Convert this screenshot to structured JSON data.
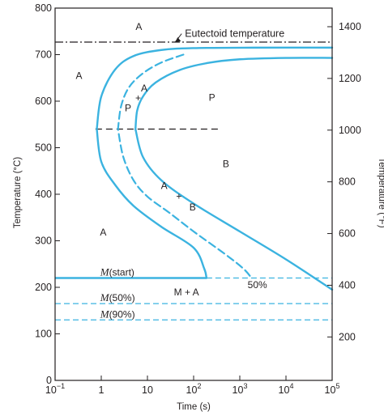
{
  "chart_data": {
    "type": "line",
    "colors": {
      "curve": "#3bb3e0",
      "axis": "#231f20",
      "dash_black": "#231f20"
    },
    "x_axis": {
      "label": "Time (s)",
      "scale": "log",
      "range": [
        0.1,
        100000
      ],
      "ticks": [
        {
          "value": 0.1,
          "base": "10",
          "exp": "−1"
        },
        {
          "value": 1,
          "base": "1",
          "exp": ""
        },
        {
          "value": 10,
          "base": "10",
          "exp": ""
        },
        {
          "value": 100,
          "base": "10",
          "exp": "2"
        },
        {
          "value": 1000,
          "base": "10",
          "exp": "3"
        },
        {
          "value": 10000,
          "base": "10",
          "exp": "4"
        },
        {
          "value": 100000,
          "base": "10",
          "exp": "5"
        }
      ]
    },
    "y_axis_left": {
      "label": "Temperature (°C)",
      "range": [
        0,
        800
      ],
      "ticks": [
        0,
        100,
        200,
        300,
        400,
        500,
        600,
        700,
        800
      ]
    },
    "y_axis_right": {
      "label": "Temperature (°F)",
      "ticks": [
        200,
        400,
        600,
        800,
        1000,
        1200,
        1400
      ]
    },
    "eutectoid": {
      "temperature": 727,
      "label": "Eutectoid temperature",
      "arrow_tip": [
        40,
        727
      ],
      "label_at": [
        55,
        745
      ]
    },
    "nose_dash": {
      "temperature": 540,
      "from": 0.75,
      "to": 400
    },
    "series": [
      {
        "role": "transformation start",
        "style": "solid",
        "points": [
          [
            0.8,
            540
          ],
          [
            1,
            610
          ],
          [
            2,
            668
          ],
          [
            5,
            697
          ],
          [
            20,
            710
          ],
          [
            100,
            714
          ],
          [
            2000,
            715
          ],
          [
            100000,
            715
          ],
          [
            0.8,
            540
          ],
          [
            1,
            470
          ],
          [
            2,
            420
          ],
          [
            5,
            375
          ],
          [
            20,
            330
          ],
          [
            100,
            285
          ],
          [
            170,
            240
          ],
          [
            190,
            220
          ]
        ]
      },
      {
        "role": "50% transformation",
        "style": "dashed",
        "points": [
          [
            2.3,
            540
          ],
          [
            2.7,
            590
          ],
          [
            4,
            630
          ],
          [
            8,
            660
          ],
          [
            20,
            683
          ],
          [
            60,
            700
          ],
          [
            2.3,
            540
          ],
          [
            3,
            480
          ],
          [
            5,
            430
          ],
          [
            10,
            395
          ],
          [
            30,
            360
          ],
          [
            100,
            320
          ],
          [
            500,
            270
          ],
          [
            1200,
            240
          ],
          [
            1800,
            220
          ]
        ]
      },
      {
        "role": "transformation completion",
        "style": "solid",
        "points": [
          [
            5.5,
            540
          ],
          [
            6,
            580
          ],
          [
            8,
            610
          ],
          [
            15,
            640
          ],
          [
            50,
            667
          ],
          [
            200,
            682
          ],
          [
            1000,
            690
          ],
          [
            10000,
            693
          ],
          [
            100000,
            693
          ],
          [
            5.5,
            540
          ],
          [
            8,
            480
          ],
          [
            20,
            430
          ],
          [
            100,
            380
          ],
          [
            1000,
            320
          ],
          [
            10000,
            260
          ],
          [
            100000,
            195
          ]
        ]
      },
      {
        "role": "M(start)",
        "style": "solid",
        "temperature": 220,
        "from": 0.1,
        "to": 190
      },
      {
        "role": "M(start) extension",
        "style": "dashed",
        "temperature": 220,
        "from": 190,
        "to": 100000
      },
      {
        "role": "M(50%)",
        "style": "dashed",
        "temperature": 165,
        "from": 0.1,
        "to": 100000
      },
      {
        "role": "M(90%)",
        "style": "dashed",
        "temperature": 130,
        "from": 0.1,
        "to": 100000
      }
    ],
    "annotations": [
      {
        "text": "A",
        "x": 6.5,
        "y": 760
      },
      {
        "text": "A",
        "x": 0.33,
        "y": 655
      },
      {
        "text": "A",
        "x": 8.5,
        "y": 628
      },
      {
        "text": "+",
        "x": 6.3,
        "y": 607
      },
      {
        "text": "P",
        "x": 3.8,
        "y": 585
      },
      {
        "text": "P",
        "x": 250,
        "y": 608
      },
      {
        "text": "B",
        "x": 500,
        "y": 465
      },
      {
        "text": "A",
        "x": 23,
        "y": 418
      },
      {
        "text": "+",
        "x": 48,
        "y": 396
      },
      {
        "text": "B",
        "x": 95,
        "y": 372
      },
      {
        "text": "A",
        "x": 1.1,
        "y": 318
      },
      {
        "text": "50%",
        "x": 2400,
        "y": 205
      },
      {
        "text": "M + A",
        "x": 70,
        "y": 190
      }
    ],
    "m_labels": [
      {
        "italic": "M",
        "rest": "(start)",
        "x": 0.95,
        "y": 232
      },
      {
        "italic": "M",
        "rest": "(50%)",
        "x": 0.95,
        "y": 177
      },
      {
        "italic": "M",
        "rest": "(90%)",
        "x": 0.95,
        "y": 142
      }
    ]
  }
}
